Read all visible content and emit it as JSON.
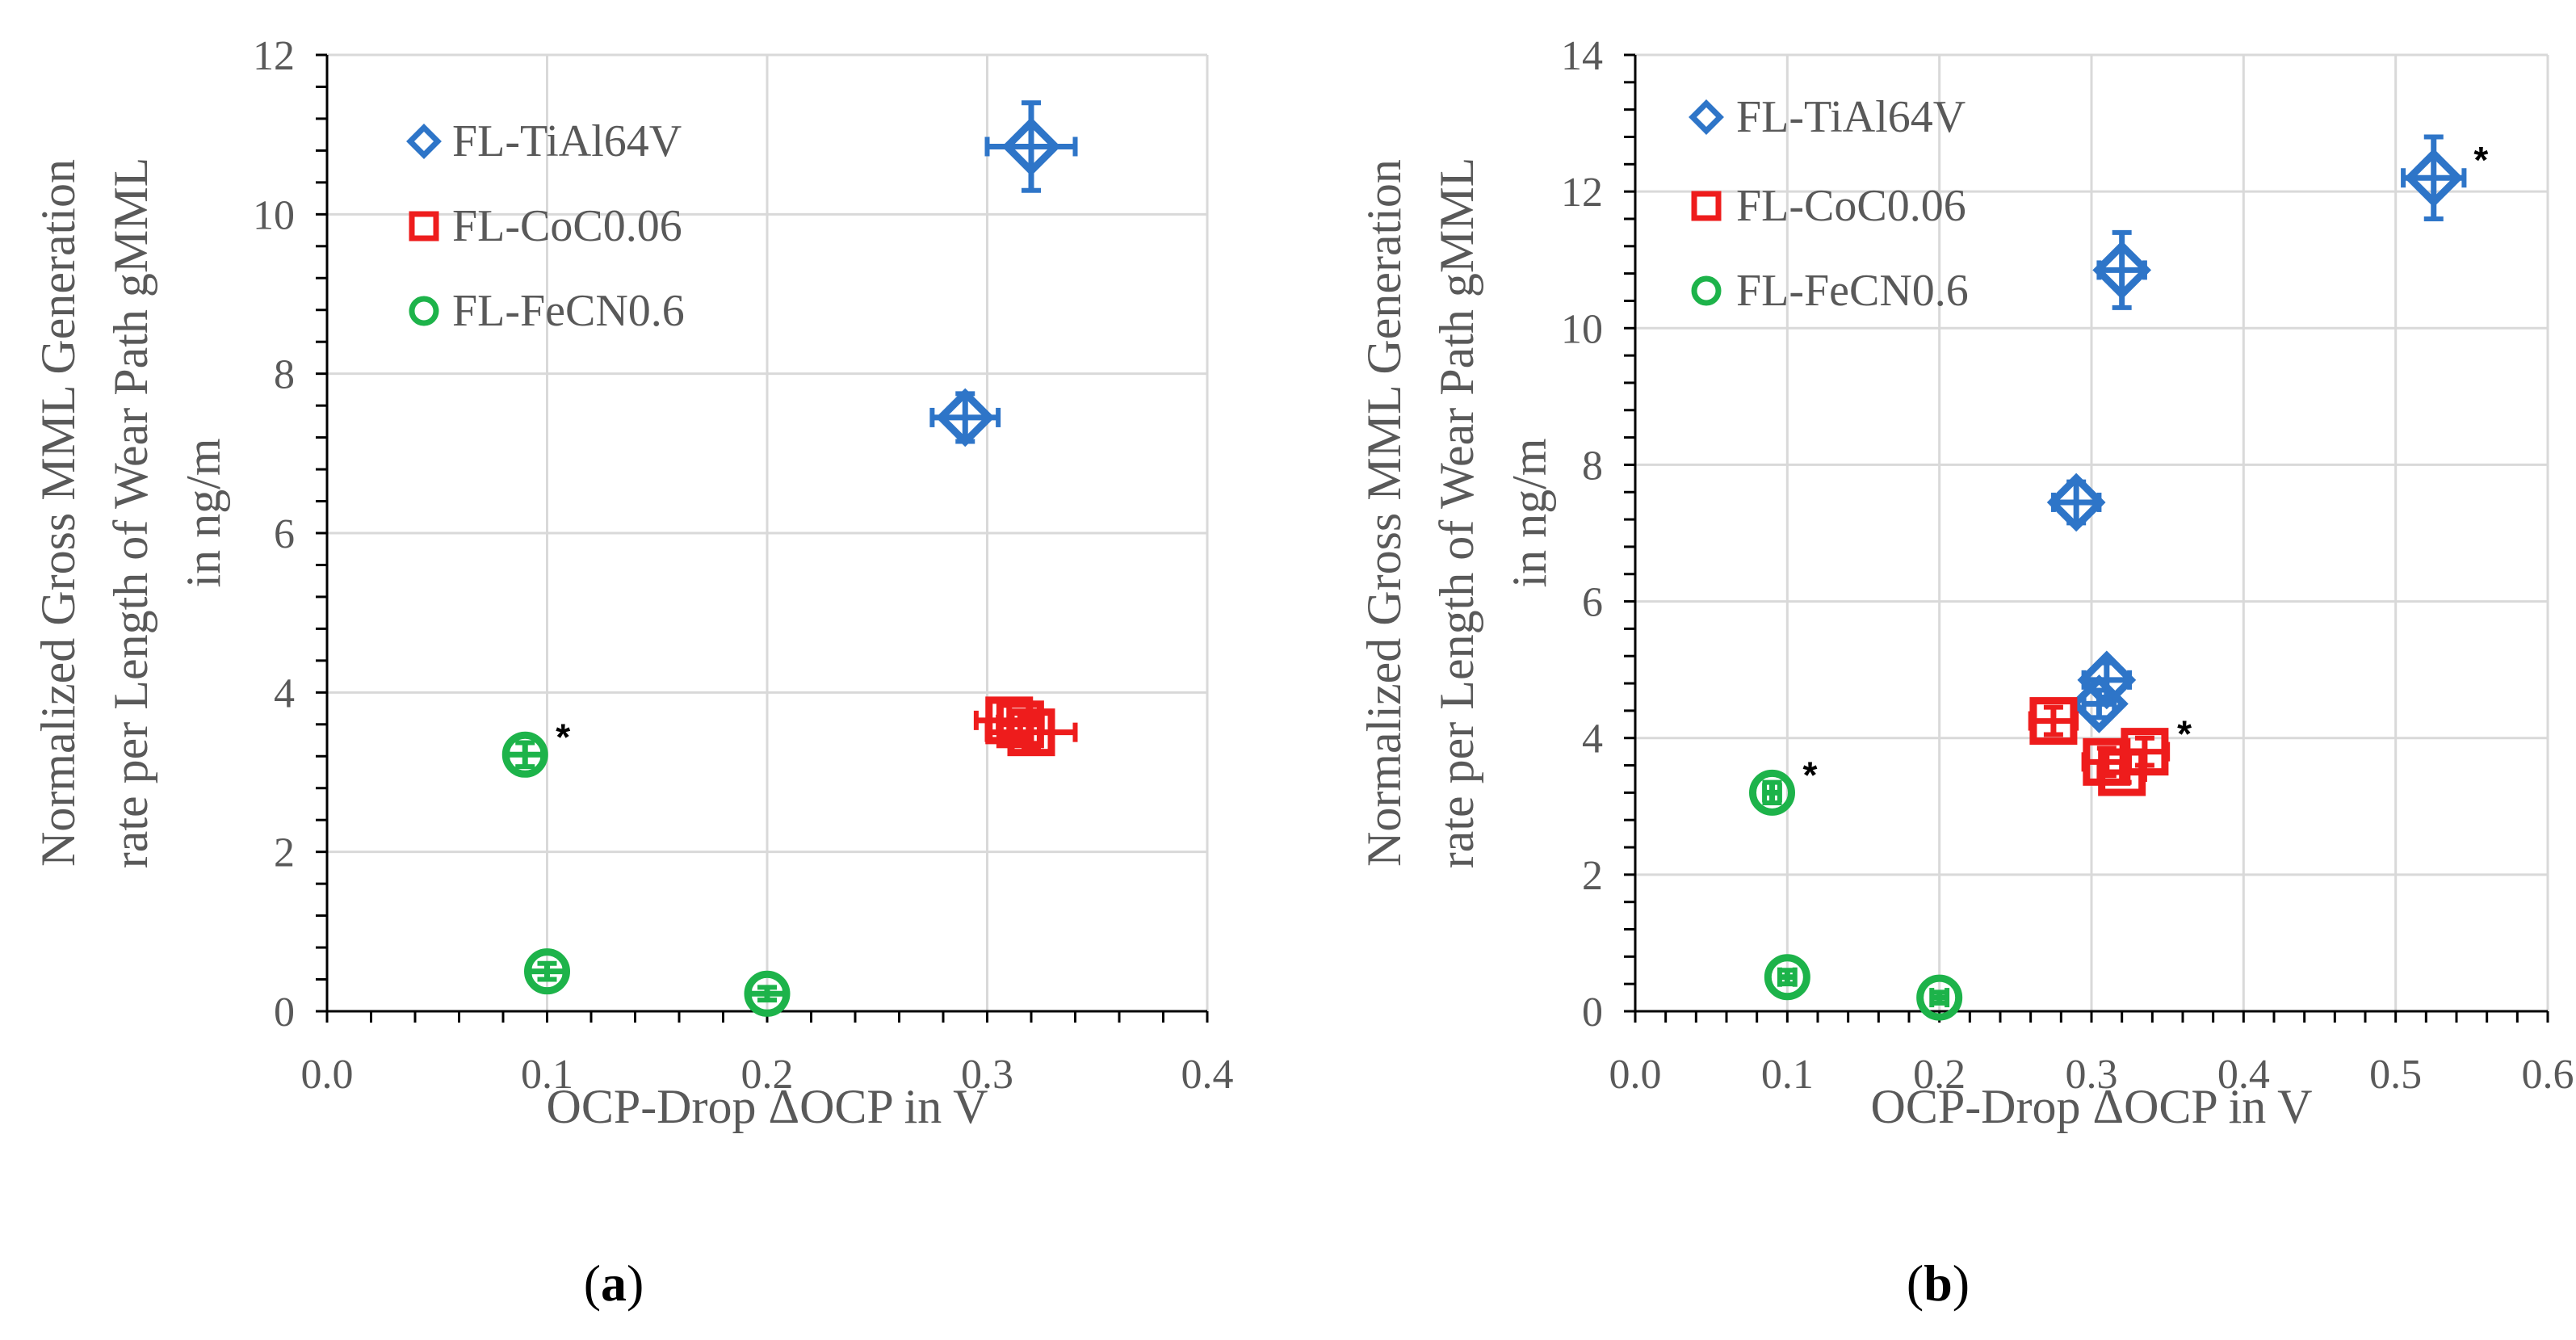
{
  "chart_data": [
    {
      "panel": "a",
      "caption_letter": "a",
      "type": "scatter",
      "xlabel": "OCP-Drop ΔOCP in V",
      "ylabel_lines": [
        "Normalized Gross MML Generation",
        "rate per Length of Wear Path gMML",
        "in ng/m"
      ],
      "xlim": [
        0,
        0.4
      ],
      "ylim": [
        0,
        12
      ],
      "xticks": [
        "0.0",
        "0.1",
        "0.2",
        "0.3",
        "0.4"
      ],
      "yticks": [
        "0",
        "2",
        "4",
        "6",
        "8",
        "10",
        "12"
      ],
      "grid": true,
      "legend_position": "top-left",
      "series": [
        {
          "name": "FL-TiAl64V",
          "marker": "diamond",
          "color": "#2E75C8",
          "points": [
            {
              "x": 0.29,
              "y": 7.45,
              "xerr": 0.015,
              "yerr": 0.3
            },
            {
              "x": 0.32,
              "y": 10.85,
              "xerr": 0.02,
              "yerr": 0.55
            }
          ]
        },
        {
          "name": "FL-CoC0.06",
          "marker": "square",
          "color": "#EE1C1C",
          "points": [
            {
              "x": 0.31,
              "y": 3.65,
              "xerr": 0.015,
              "yerr": 0.2
            },
            {
              "x": 0.315,
              "y": 3.6,
              "xerr": 0.01,
              "yerr": 0.15
            },
            {
              "x": 0.32,
              "y": 3.5,
              "xerr": 0.02,
              "yerr": 0.2
            }
          ]
        },
        {
          "name": "FL-FeCN0.6",
          "marker": "circle",
          "color": "#1DB34A",
          "points": [
            {
              "x": 0.09,
              "y": 3.22,
              "xerr": 0.008,
              "yerr": 0.15,
              "star": "*"
            },
            {
              "x": 0.1,
              "y": 0.5,
              "xerr": 0.008,
              "yerr": 0.1
            },
            {
              "x": 0.2,
              "y": 0.22,
              "xerr": 0.008,
              "yerr": 0.08
            }
          ]
        }
      ]
    },
    {
      "panel": "b",
      "caption_letter": "b",
      "type": "scatter",
      "xlabel": "OCP-Drop ΔOCP in V",
      "ylabel_lines": [
        "Normalized Gross MML Generation",
        "rate per Length of Wear Path gMML",
        "in ng/m"
      ],
      "xlim": [
        0,
        0.6
      ],
      "ylim": [
        0,
        14
      ],
      "xticks": [
        "0.0",
        "0.1",
        "0.2",
        "0.3",
        "0.4",
        "0.5",
        "0.6"
      ],
      "yticks": [
        "0",
        "2",
        "4",
        "6",
        "8",
        "10",
        "12",
        "14"
      ],
      "grid": true,
      "legend_position": "top-left",
      "series": [
        {
          "name": "FL-TiAl64V",
          "marker": "diamond",
          "color": "#2E75C8",
          "points": [
            {
              "x": 0.29,
              "y": 7.45,
              "xerr": 0.015,
              "yerr": 0.3
            },
            {
              "x": 0.32,
              "y": 10.85,
              "xerr": 0.015,
              "yerr": 0.55
            },
            {
              "x": 0.31,
              "y": 4.85,
              "xerr": 0.015,
              "yerr": 0.25
            },
            {
              "x": 0.305,
              "y": 4.5,
              "xerr": 0.01,
              "yerr": 0.2
            },
            {
              "x": 0.525,
              "y": 12.2,
              "xerr": 0.02,
              "yerr": 0.6,
              "star": "*"
            }
          ]
        },
        {
          "name": "FL-CoC0.06",
          "marker": "square",
          "color": "#EE1C1C",
          "points": [
            {
              "x": 0.275,
              "y": 4.25,
              "xerr": 0.015,
              "yerr": 0.2
            },
            {
              "x": 0.31,
              "y": 3.65,
              "xerr": 0.015,
              "yerr": 0.2
            },
            {
              "x": 0.32,
              "y": 3.5,
              "xerr": 0.015,
              "yerr": 0.15
            },
            {
              "x": 0.335,
              "y": 3.8,
              "xerr": 0.015,
              "yerr": 0.2,
              "star": "*"
            }
          ]
        },
        {
          "name": "FL-FeCN0.6",
          "marker": "circle",
          "color": "#1DB34A",
          "points": [
            {
              "x": 0.09,
              "y": 3.2,
              "xerr": 0.005,
              "yerr": 0.15,
              "star": "*"
            },
            {
              "x": 0.1,
              "y": 0.5,
              "xerr": 0.005,
              "yerr": 0.1
            },
            {
              "x": 0.2,
              "y": 0.2,
              "xerr": 0.005,
              "yerr": 0.08
            }
          ]
        }
      ]
    }
  ]
}
